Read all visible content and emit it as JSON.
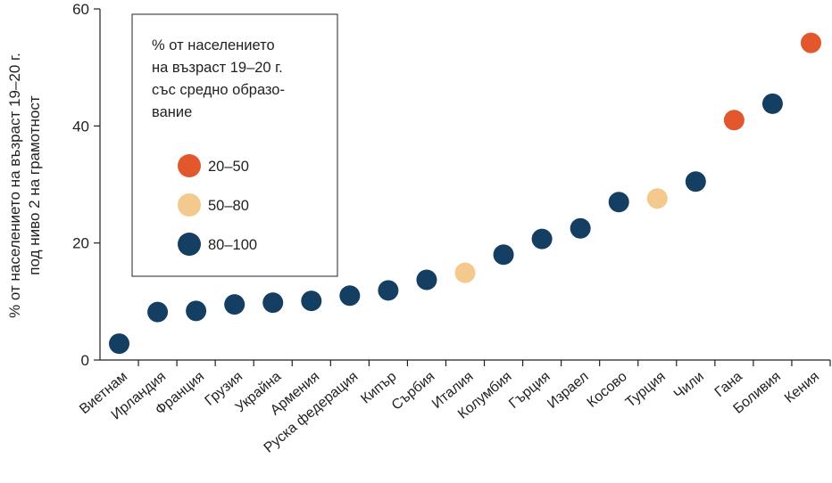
{
  "chart_data": {
    "type": "scatter",
    "ylabel": "% от населението на възраст 19–20 г. под ниво 2 на грамотност",
    "ylabel_lines": [
      "% от населението на възраст 19–20 г.",
      "под ниво 2 на грамотност"
    ],
    "ylim": [
      0,
      60
    ],
    "yticks": [
      0,
      20,
      40,
      60
    ],
    "grid": false,
    "categories": [
      "Виетнам",
      "Ирландия",
      "Франция",
      "Грузия",
      "Украйна",
      "Армения",
      "Руска федерация",
      "Кипър",
      "Сърбия",
      "Италия",
      "Колумбия",
      "Гърция",
      "Израел",
      "Косово",
      "Турция",
      "Чили",
      "Гана",
      "Боливия",
      "Кения"
    ],
    "values": [
      2.8,
      8.2,
      8.4,
      9.5,
      9.8,
      10.1,
      11.0,
      11.9,
      13.7,
      14.9,
      18.0,
      20.7,
      22.5,
      27.0,
      27.6,
      30.5,
      41.0,
      43.8,
      54.2
    ],
    "groups": [
      "80–100",
      "80–100",
      "80–100",
      "80–100",
      "80–100",
      "80–100",
      "80–100",
      "80–100",
      "80–100",
      "50–80",
      "80–100",
      "80–100",
      "80–100",
      "80–100",
      "50–80",
      "80–100",
      "20–50",
      "80–100",
      "20–50"
    ],
    "legend": {
      "position": "top-left",
      "title_lines": [
        "% от населението",
        "на възраст 19–20 г.",
        "със средно образо-",
        "вание"
      ],
      "items": [
        {
          "label": "20–50",
          "color": "#e2572b"
        },
        {
          "label": "50–80",
          "color": "#f4c98d"
        },
        {
          "label": "80–100",
          "color": "#143f63"
        }
      ]
    }
  }
}
